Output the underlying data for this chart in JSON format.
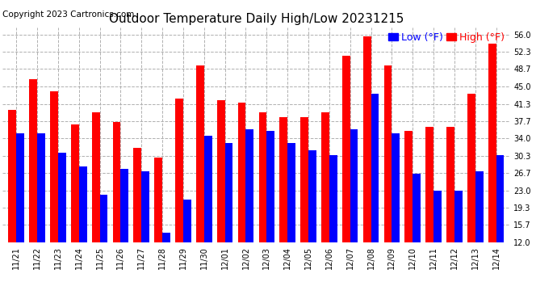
{
  "title": "Outdoor Temperature Daily High/Low 20231215",
  "copyright": "Copyright 2023 Cartronics.com",
  "legend_low_label": "Low",
  "legend_high_label": "High",
  "legend_unit": "(°F)",
  "dates": [
    "11/21",
    "11/22",
    "11/23",
    "11/24",
    "11/25",
    "11/26",
    "11/27",
    "11/28",
    "11/29",
    "11/30",
    "12/01",
    "12/02",
    "12/03",
    "12/04",
    "12/05",
    "12/06",
    "12/07",
    "12/08",
    "12/09",
    "12/10",
    "12/11",
    "12/12",
    "12/13",
    "12/14"
  ],
  "high_values": [
    40.0,
    46.5,
    44.0,
    37.0,
    39.5,
    37.5,
    32.0,
    30.0,
    42.5,
    49.5,
    42.0,
    41.5,
    39.5,
    38.5,
    38.5,
    39.5,
    51.5,
    55.5,
    49.5,
    35.5,
    36.5,
    36.5,
    43.5,
    54.0
  ],
  "low_values": [
    35.0,
    35.0,
    31.0,
    28.0,
    22.0,
    27.5,
    27.0,
    14.0,
    21.0,
    34.5,
    33.0,
    36.0,
    35.5,
    33.0,
    31.5,
    30.5,
    36.0,
    43.5,
    35.0,
    26.5,
    23.0,
    23.0,
    27.0,
    30.5
  ],
  "ylim": [
    12.0,
    57.5
  ],
  "yticks": [
    12.0,
    15.7,
    19.3,
    23.0,
    26.7,
    30.3,
    34.0,
    37.7,
    41.3,
    45.0,
    48.7,
    52.3,
    56.0
  ],
  "high_color": "#ff0000",
  "low_color": "#0000ff",
  "bar_width": 0.38,
  "background_color": "#ffffff",
  "plot_bg_color": "#ffffff",
  "grid_color": "#b0b0b0",
  "title_fontsize": 11,
  "copyright_fontsize": 7.5,
  "tick_fontsize": 7,
  "legend_fontsize": 9
}
